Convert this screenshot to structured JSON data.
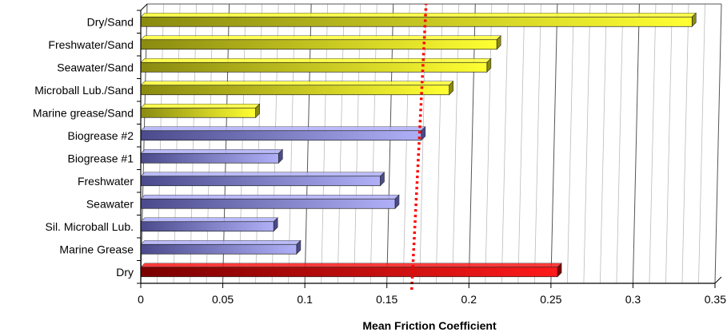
{
  "chart_data": {
    "type": "bar",
    "orientation": "horizontal",
    "title": "",
    "xlabel": "Mean Friction Coefficient",
    "ylabel": "",
    "xlim": [
      0,
      0.35
    ],
    "x_ticks": [
      "0",
      "0.05",
      "0.1",
      "0.15",
      "0.2",
      "0.25",
      "0.3",
      "0.35"
    ],
    "grid": true,
    "categories": [
      "Dry/Sand",
      "Freshwater/Sand",
      "Seawater/Sand",
      "Microball Lub./Sand",
      "Marine grease/Sand",
      "Biogrease #2",
      "Biogrease #1",
      "Freshwater",
      "Seawater",
      "Sil. Microball Lub.",
      "Marine Grease",
      "Dry"
    ],
    "values": [
      0.336,
      0.217,
      0.211,
      0.188,
      0.07,
      0.171,
      0.084,
      0.146,
      0.155,
      0.081,
      0.095,
      0.254
    ],
    "bar_groups": [
      "yellow",
      "yellow",
      "yellow",
      "yellow",
      "yellow",
      "blue",
      "blue",
      "blue",
      "blue",
      "blue",
      "blue",
      "red"
    ],
    "colors": {
      "yellow": [
        "#8a8a10",
        "#ffff33"
      ],
      "blue": [
        "#4a4a8c",
        "#b0b0f8"
      ],
      "red": [
        "#7a0000",
        "#ff1a1a"
      ],
      "reference_line": "#ff0000"
    },
    "reference_line": 0.17
  }
}
